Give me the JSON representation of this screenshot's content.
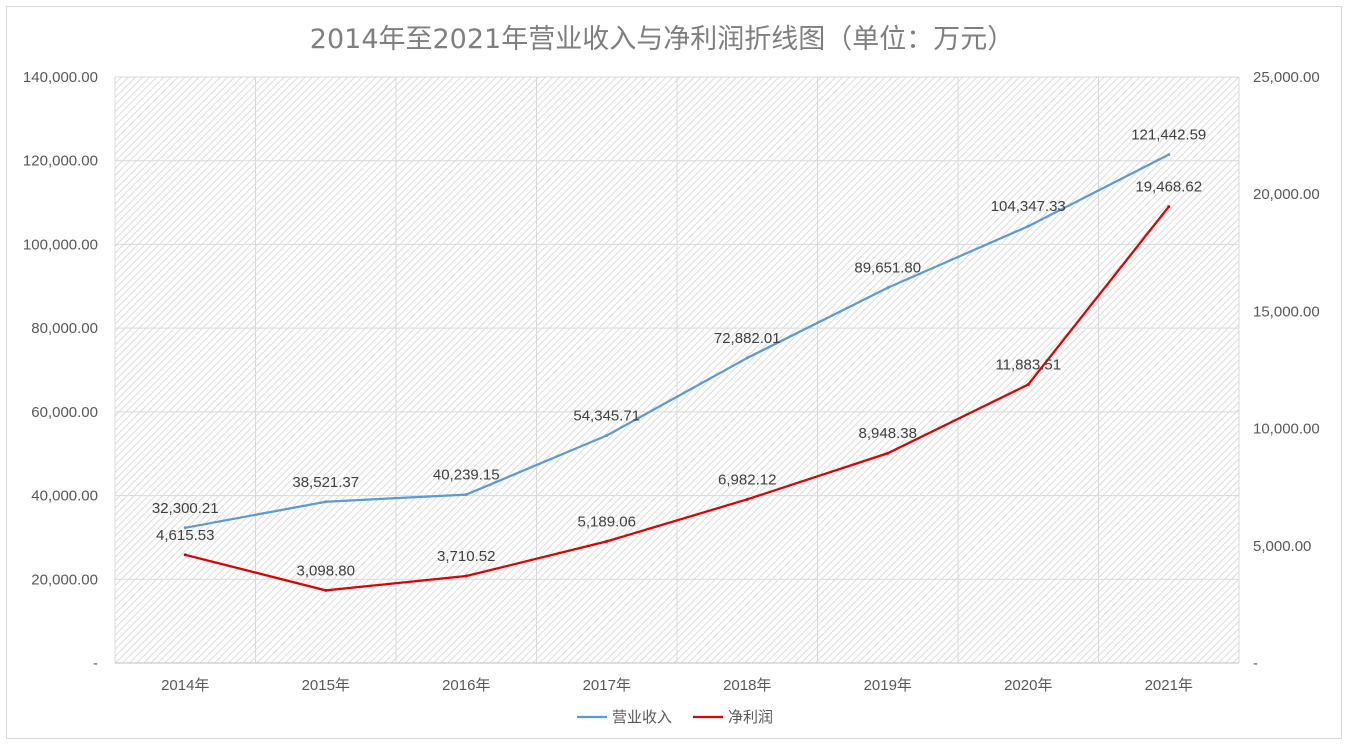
{
  "chart_data": {
    "type": "line",
    "title": "2014年至2021年营业收入与净利润折线图（单位：万元）",
    "categories": [
      "2014年",
      "2015年",
      "2016年",
      "2017年",
      "2018年",
      "2019年",
      "2020年",
      "2021年"
    ],
    "series": [
      {
        "name": "营业收入",
        "axis": "left",
        "color": "#5b9bd5",
        "values": [
          32300.21,
          38521.37,
          40239.15,
          54345.71,
          72882.01,
          89651.8,
          104347.33,
          121442.59
        ],
        "labels": [
          "32,300.21",
          "38,521.37",
          "40,239.15",
          "54,345.71",
          "72,882.01",
          "89,651.80",
          "104,347.33",
          "121,442.59"
        ]
      },
      {
        "name": "净利润",
        "axis": "right",
        "color": "#e00000",
        "values": [
          4615.53,
          3098.8,
          3710.52,
          5189.06,
          6982.12,
          8948.38,
          11883.51,
          19468.62
        ],
        "labels": [
          "4,615.53",
          "3,098.80",
          "3,710.52",
          "5,189.06",
          "6,982.12",
          "8,948.38",
          "11,883.51",
          "19,468.62"
        ]
      }
    ],
    "y_left": {
      "min": 0,
      "max": 140000,
      "ticks": [
        0,
        20000,
        40000,
        60000,
        80000,
        100000,
        120000,
        140000
      ],
      "tick_labels": [
        "-",
        "20,000.00",
        "40,000.00",
        "60,000.00",
        "80,000.00",
        "100,000.00",
        "120,000.00",
        "140,000.00"
      ]
    },
    "y_right": {
      "min": 0,
      "max": 25000,
      "ticks": [
        0,
        5000,
        10000,
        15000,
        20000,
        25000
      ],
      "tick_labels": [
        "-",
        "5,000.00",
        "10,000.00",
        "15,000.00",
        "20,000.00",
        "25,000.00"
      ]
    },
    "grid": true,
    "legend": "bottom",
    "colors": {
      "gridline": "#d9d9d9",
      "axis_line": "#bfbfbf"
    }
  }
}
